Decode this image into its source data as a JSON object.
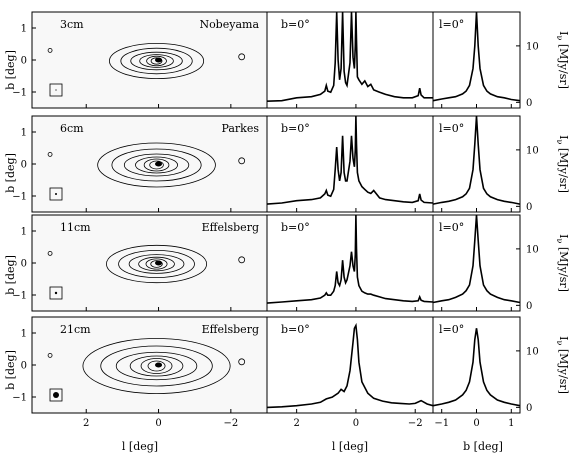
{
  "figure_axes": {
    "map_ylabel": "b [deg]",
    "map_xlabel": "l [deg]",
    "profile_xlabel": "l [deg]",
    "cut_xlabel": "b [deg]",
    "intensity_label": "I",
    "intensity_sub": "ν",
    "intensity_unit": " [MJy/sr]",
    "map_xticks": [
      "2",
      "0",
      "−2"
    ],
    "map_yticks": [
      "1",
      "0",
      "−1"
    ],
    "profile_xticks": [
      "2",
      "0",
      "−2"
    ],
    "cut_xticks": [
      "−1",
      "0",
      "1"
    ],
    "intensity_yticks": [
      "10",
      "0"
    ]
  },
  "chart_data": [
    {
      "type": "line",
      "row": 1,
      "wavelength": "3cm",
      "telescope": "Nobeyama",
      "profile_label": "b=0°",
      "cut_label": "l=0°",
      "map_xlim": [
        3.5,
        -3.0
      ],
      "map_ylim": [
        -1.5,
        1.5
      ],
      "profile": {
        "xlim": [
          3.0,
          -2.6
        ],
        "ylim": [
          -1,
          16
        ],
        "x": [
          3.0,
          2.5,
          2.0,
          1.5,
          1.2,
          1.05,
          1.0,
          0.95,
          0.85,
          0.75,
          0.7,
          0.65,
          0.6,
          0.55,
          0.5,
          0.45,
          0.4,
          0.35,
          0.3,
          0.2,
          0.15,
          0.1,
          0.05,
          0.02,
          0.0,
          -0.02,
          -0.05,
          -0.1,
          -0.2,
          -0.3,
          -0.4,
          -0.5,
          -0.6,
          -0.8,
          -1.0,
          -1.3,
          -1.6,
          -1.9,
          -2.1,
          -2.15,
          -2.2,
          -2.3,
          -2.6
        ],
        "y": [
          0.2,
          0.3,
          0.8,
          1.0,
          1.4,
          2.0,
          3.0,
          2.0,
          1.8,
          3.0,
          7.0,
          16.0,
          7.5,
          4.0,
          6.0,
          16.0,
          5.5,
          3.5,
          3.0,
          7.0,
          16.0,
          8.0,
          6.0,
          10.0,
          16.0,
          11.0,
          4.5,
          4.0,
          3.2,
          3.8,
          2.8,
          3.2,
          2.2,
          1.8,
          1.4,
          1.0,
          0.8,
          0.8,
          1.2,
          2.5,
          1.3,
          0.8,
          0.8
        ]
      },
      "cut": {
        "xlim": [
          -1.25,
          1.25
        ],
        "ylim": [
          -1,
          16
        ],
        "x": [
          -1.25,
          -1.0,
          -0.8,
          -0.6,
          -0.4,
          -0.3,
          -0.2,
          -0.1,
          -0.05,
          0.0,
          0.05,
          0.1,
          0.2,
          0.3,
          0.4,
          0.6,
          0.8,
          1.0,
          1.25
        ],
        "y": [
          0.3,
          0.6,
          0.8,
          1.0,
          1.5,
          2.0,
          3.0,
          6.0,
          10.0,
          16.0,
          10.0,
          6.0,
          3.0,
          2.0,
          1.5,
          1.0,
          0.8,
          0.5,
          0.3
        ]
      }
    },
    {
      "type": "line",
      "row": 2,
      "wavelength": "6cm",
      "telescope": "Parkes",
      "profile_label": "b=0°",
      "cut_label": "l=0°",
      "map_xlim": [
        3.5,
        -3.0
      ],
      "map_ylim": [
        -1.5,
        1.5
      ],
      "profile": {
        "xlim": [
          3.0,
          -2.6
        ],
        "ylim": [
          -1,
          16
        ],
        "x": [
          3.0,
          2.5,
          2.0,
          1.5,
          1.2,
          1.05,
          1.0,
          0.95,
          0.85,
          0.75,
          0.7,
          0.65,
          0.6,
          0.55,
          0.5,
          0.45,
          0.4,
          0.35,
          0.3,
          0.2,
          0.15,
          0.1,
          0.05,
          0.02,
          0.0,
          -0.02,
          -0.05,
          -0.1,
          -0.2,
          -0.3,
          -0.4,
          -0.5,
          -0.6,
          -0.8,
          -1.0,
          -1.3,
          -1.6,
          -1.9,
          -2.1,
          -2.15,
          -2.2,
          -2.3,
          -2.6
        ],
        "y": [
          0.4,
          0.6,
          1.0,
          1.2,
          1.5,
          2.2,
          2.8,
          2.0,
          1.8,
          3.0,
          6.5,
          10.5,
          6.5,
          4.5,
          6.0,
          12.5,
          6.0,
          4.5,
          4.5,
          8.0,
          12.5,
          8.5,
          7.0,
          10.0,
          16.0,
          11.0,
          6.0,
          4.5,
          3.5,
          3.0,
          2.5,
          2.3,
          2.8,
          1.5,
          1.2,
          1.0,
          0.8,
          0.7,
          1.0,
          2.2,
          1.1,
          0.7,
          0.6
        ]
      },
      "cut": {
        "xlim": [
          -1.25,
          1.25
        ],
        "ylim": [
          -1,
          16
        ],
        "x": [
          -1.25,
          -1.0,
          -0.8,
          -0.6,
          -0.4,
          -0.3,
          -0.2,
          -0.1,
          -0.05,
          0.0,
          0.05,
          0.1,
          0.2,
          0.3,
          0.4,
          0.6,
          0.8,
          1.0,
          1.25
        ],
        "y": [
          0.4,
          0.7,
          0.9,
          1.2,
          1.7,
          2.2,
          3.2,
          6.5,
          11.0,
          16.0,
          11.0,
          6.5,
          3.2,
          2.2,
          1.7,
          1.2,
          0.9,
          0.7,
          0.4
        ]
      }
    },
    {
      "type": "line",
      "row": 3,
      "wavelength": "11cm",
      "telescope": "Effelsberg",
      "profile_label": "b=0°",
      "cut_label": "l=0°",
      "map_xlim": [
        3.5,
        -3.0
      ],
      "map_ylim": [
        -1.5,
        1.5
      ],
      "profile": {
        "xlim": [
          3.0,
          -2.6
        ],
        "ylim": [
          -1,
          16
        ],
        "x": [
          3.0,
          2.5,
          2.0,
          1.5,
          1.2,
          1.05,
          1.0,
          0.95,
          0.85,
          0.75,
          0.7,
          0.65,
          0.6,
          0.55,
          0.5,
          0.45,
          0.4,
          0.35,
          0.3,
          0.2,
          0.15,
          0.1,
          0.05,
          0.02,
          0.0,
          -0.02,
          -0.05,
          -0.1,
          -0.2,
          -0.3,
          -0.4,
          -0.5,
          -0.6,
          -0.8,
          -1.0,
          -1.3,
          -1.6,
          -1.9,
          -2.1,
          -2.15,
          -2.2,
          -2.3,
          -2.6
        ],
        "y": [
          0.4,
          0.6,
          0.8,
          1.0,
          1.3,
          1.8,
          2.2,
          1.8,
          1.8,
          2.5,
          3.5,
          6.0,
          4.0,
          3.5,
          4.5,
          8.0,
          5.0,
          4.0,
          4.5,
          7.0,
          9.5,
          7.0,
          6.0,
          9.0,
          16.0,
          10.0,
          5.0,
          3.5,
          2.5,
          2.2,
          2.0,
          2.0,
          1.8,
          1.5,
          1.2,
          1.0,
          0.8,
          0.7,
          0.8,
          1.5,
          0.9,
          0.7,
          0.6
        ]
      },
      "cut": {
        "xlim": [
          -1.25,
          1.25
        ],
        "ylim": [
          -1,
          16
        ],
        "x": [
          -1.25,
          -1.0,
          -0.8,
          -0.6,
          -0.4,
          -0.3,
          -0.2,
          -0.1,
          -0.05,
          0.0,
          0.05,
          0.1,
          0.2,
          0.3,
          0.4,
          0.6,
          0.8,
          1.0,
          1.25
        ],
        "y": [
          0.5,
          0.8,
          1.0,
          1.4,
          2.0,
          2.6,
          3.6,
          7.0,
          11.5,
          16.0,
          11.5,
          7.0,
          3.6,
          2.6,
          2.0,
          1.4,
          1.0,
          0.8,
          0.5
        ]
      }
    },
    {
      "type": "line",
      "row": 4,
      "wavelength": "21cm",
      "telescope": "Effelsberg",
      "profile_label": "b=0°",
      "cut_label": "l=0°",
      "map_xlim": [
        3.5,
        -3.0
      ],
      "map_ylim": [
        -1.5,
        1.5
      ],
      "profile": {
        "xlim": [
          3.0,
          -2.6
        ],
        "ylim": [
          -1,
          16
        ],
        "x": [
          3.0,
          2.5,
          2.0,
          1.5,
          1.2,
          1.0,
          0.8,
          0.6,
          0.5,
          0.4,
          0.3,
          0.2,
          0.15,
          0.1,
          0.05,
          0.0,
          -0.05,
          -0.1,
          -0.2,
          -0.4,
          -0.6,
          -0.9,
          -1.2,
          -1.5,
          -1.8,
          -2.0,
          -2.2,
          -2.4,
          -2.6
        ],
        "y": [
          0.0,
          0.1,
          0.3,
          0.6,
          0.9,
          1.5,
          1.8,
          2.5,
          3.2,
          2.8,
          3.8,
          6.5,
          9.0,
          11.5,
          14.0,
          14.5,
          12.0,
          8.0,
          4.5,
          2.5,
          1.6,
          1.1,
          0.8,
          0.7,
          0.6,
          0.7,
          1.2,
          0.6,
          0.3
        ]
      },
      "cut": {
        "xlim": [
          -1.25,
          1.25
        ],
        "ylim": [
          -1,
          16
        ],
        "x": [
          -1.25,
          -1.0,
          -0.8,
          -0.6,
          -0.4,
          -0.3,
          -0.2,
          -0.1,
          -0.05,
          0.0,
          0.05,
          0.1,
          0.2,
          0.3,
          0.4,
          0.6,
          0.8,
          1.0,
          1.25
        ],
        "y": [
          0.3,
          0.6,
          0.9,
          1.3,
          2.2,
          3.0,
          4.5,
          8.0,
          12.0,
          14.0,
          12.0,
          8.0,
          4.5,
          3.0,
          2.2,
          1.3,
          0.9,
          0.6,
          0.3
        ]
      }
    }
  ]
}
